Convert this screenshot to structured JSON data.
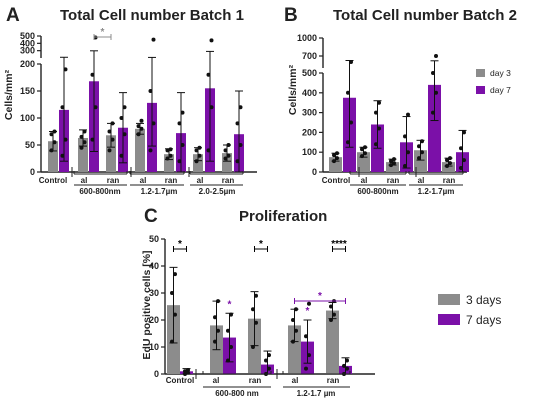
{
  "colors": {
    "grey": "#8c8c8c",
    "purple": "#7b10a8",
    "axis": "#222222",
    "sig_gray": "#8c8c8c",
    "sig_black": "#000000",
    "sig_purple": "#7b10a8"
  },
  "figure": {
    "A": {
      "letter": "A",
      "title": "Total Cell number Batch 1"
    },
    "B": {
      "letter": "B",
      "title": "Total Cell number Batch 2"
    },
    "C": {
      "letter": "C",
      "title": "Proliferation"
    }
  },
  "legend_b": [
    "day 3",
    "day 7"
  ],
  "legend_c": [
    "3 days",
    "7 days"
  ],
  "chart_data": [
    {
      "panel": "A",
      "type": "bar",
      "title": "Total Cell number Batch 1",
      "ylabel": "Cells/mm²",
      "y_axis": {
        "broken": true,
        "lower": {
          "range": [
            0,
            200
          ],
          "ticks": [
            "0",
            "50",
            "100",
            "150",
            "200"
          ]
        },
        "upper": {
          "range": [
            200,
            500
          ],
          "ticks": [
            "300",
            "400",
            "500"
          ]
        }
      },
      "categories": [
        "Control",
        "al",
        "ran",
        "al",
        "ran",
        "al",
        "ran"
      ],
      "group_labels": [
        "600-800nm",
        "1.2-1.7µm",
        "2.0-2.5µm"
      ],
      "series": [
        {
          "name": "grey",
          "values": [
            57,
            63,
            68,
            80,
            33,
            33,
            35
          ],
          "err": [
            18,
            15,
            22,
            10,
            10,
            12,
            15
          ],
          "points": [
            [
              40,
              55,
              70,
              75
            ],
            [
              45,
              55,
              65,
              75
            ],
            [
              40,
              60,
              75,
              90
            ],
            [
              70,
              80,
              85,
              95
            ],
            [
              25,
              30,
              40,
              42
            ],
            [
              20,
              30,
              40,
              45
            ],
            [
              25,
              30,
              40,
              50
            ]
          ]
        },
        {
          "name": "purple",
          "values": [
            115,
            168,
            82,
            128,
            72,
            155,
            70
          ],
          "err": [
            95,
            130,
            65,
            80,
            75,
            135,
            80
          ],
          "points": [
            [
              30,
              60,
              120,
              190
            ],
            [
              60,
              120,
              180,
              480
            ],
            [
              30,
              70,
              100,
              120
            ],
            [
              40,
              90,
              150,
              450
            ],
            [
              20,
              50,
              90,
              110
            ],
            [
              40,
              120,
              180,
              440
            ],
            [
              20,
              50,
              90,
              120
            ]
          ]
        }
      ],
      "significance": [
        {
          "pair": [
            3,
            4
          ],
          "label": "*",
          "color": "grey"
        }
      ]
    },
    {
      "panel": "B",
      "type": "bar",
      "title": "Total Cell number Batch 2",
      "ylabel": "Cells/mm²",
      "y_axis": {
        "broken": true,
        "lower": {
          "range": [
            0,
            500
          ],
          "ticks": [
            "0",
            "100",
            "200",
            "300",
            "400",
            "500"
          ]
        },
        "upper": {
          "range": [
            500,
            1000
          ],
          "ticks": [
            "700",
            "1000"
          ]
        }
      },
      "categories": [
        "Control",
        "al",
        "ran",
        "al",
        "ran"
      ],
      "group_labels": [
        "600-800nm",
        "1.2-1.7µm"
      ],
      "series": [
        {
          "name": "day 3",
          "values": [
            75,
            100,
            50,
            110,
            50
          ],
          "err": [
            20,
            25,
            15,
            50,
            20
          ],
          "points": [
            [
              55,
              70,
              85,
              95
            ],
            [
              80,
              95,
              115,
              125
            ],
            [
              35,
              45,
              55,
              65
            ],
            [
              70,
              100,
              130,
              155
            ],
            [
              30,
              45,
              60,
              70
            ]
          ]
        },
        {
          "name": "day 7",
          "values": [
            375,
            240,
            150,
            440,
            100
          ],
          "err": [
            250,
            120,
            130,
            180,
            110
          ],
          "points": [
            [
              150,
              250,
              400,
              600
            ],
            [
              140,
              220,
              300,
              350
            ],
            [
              30,
              100,
              180,
              290
            ],
            [
              300,
              400,
              500,
              700
            ],
            [
              20,
              60,
              120,
              200
            ]
          ]
        }
      ]
    },
    {
      "panel": "C",
      "type": "bar",
      "title": "Proliferation",
      "ylabel": "EdU positive cells [%]",
      "y_axis": {
        "range": [
          0,
          50
        ],
        "ticks": [
          "0",
          "10",
          "20",
          "30",
          "40",
          "50"
        ]
      },
      "categories": [
        "Control",
        "al",
        "ran",
        "al",
        "ran"
      ],
      "group_labels": [
        "600-800 nm",
        "1.2-1.7 µm"
      ],
      "series": [
        {
          "name": "3 days",
          "values": [
            25.5,
            18,
            20.5,
            18,
            23.5
          ],
          "err": [
            14,
            9,
            10,
            6,
            3
          ],
          "points": [
            [
              12,
              22,
              30,
              37
            ],
            [
              12,
              16,
              21,
              27
            ],
            [
              10,
              19,
              24,
              29
            ],
            [
              12,
              16,
              20,
              24
            ],
            [
              20,
              22,
              25,
              27
            ]
          ]
        },
        {
          "name": "7 days",
          "values": [
            1,
            13.5,
            3.5,
            12,
            3
          ],
          "err": [
            1,
            9,
            5,
            8,
            3
          ],
          "points": [
            [
              0,
              0.5,
              1,
              1.5
            ],
            [
              5,
              10,
              16,
              22
            ],
            [
              0,
              2,
              5,
              7
            ],
            [
              2,
              7,
              14,
              26
            ],
            [
              0,
              2,
              3,
              5
            ]
          ]
        }
      ],
      "significance": [
        {
          "pair": [
            0,
            1
          ],
          "label": "*",
          "color": "black"
        },
        {
          "pair": [
            4,
            5
          ],
          "label": "*",
          "color": "black"
        },
        {
          "pair": [
            6,
            9
          ],
          "label": "*",
          "color": "purple"
        },
        {
          "pair": [
            8,
            9
          ],
          "label": "****",
          "color": "black"
        }
      ],
      "point_stars": [
        {
          "bar": 3,
          "label": "*",
          "color": "purple"
        },
        {
          "bar": 7,
          "label": "*",
          "color": "purple"
        }
      ]
    }
  ]
}
